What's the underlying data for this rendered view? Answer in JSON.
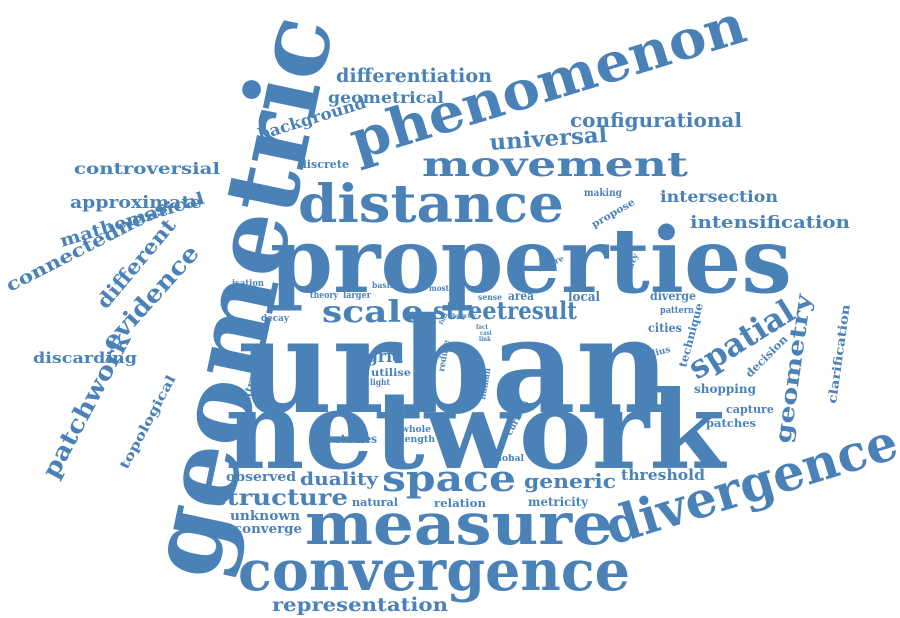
{
  "word_cloud": {
    "color": "#4a82b8",
    "words": [
      "urban",
      "network",
      "properties",
      "geometric",
      "measure",
      "convergence",
      "divergence",
      "phenomenon",
      "distance",
      "movement",
      "space",
      "scale",
      "street",
      "result",
      "spatial",
      "geometry",
      "universal",
      "configurational",
      "differentiation",
      "geometrical",
      "background",
      "controversial",
      "approximate",
      "mathematical",
      "connectedness",
      "different",
      "evidence",
      "patchwork",
      "topological",
      "discarding",
      "intersection",
      "intensification",
      "representation",
      "structure",
      "duality",
      "generic",
      "threshold",
      "observed",
      "unknown",
      "converge",
      "natural",
      "relation",
      "metricity",
      "studies",
      "whole",
      "length",
      "global",
      "grid",
      "utilise",
      "light",
      "attractor",
      "decay",
      "isation",
      "theory",
      "larger",
      "basis",
      "most",
      "area",
      "local",
      "diverge",
      "cities",
      "technique",
      "radius",
      "decision",
      "clarification",
      "shopping",
      "capture",
      "patches",
      "discrete",
      "making",
      "propose",
      "pattern",
      "centre",
      "locality",
      "sense",
      "reduce",
      "human",
      "curious",
      "full",
      "help",
      "fact",
      "link",
      "city",
      "cast"
    ]
  }
}
